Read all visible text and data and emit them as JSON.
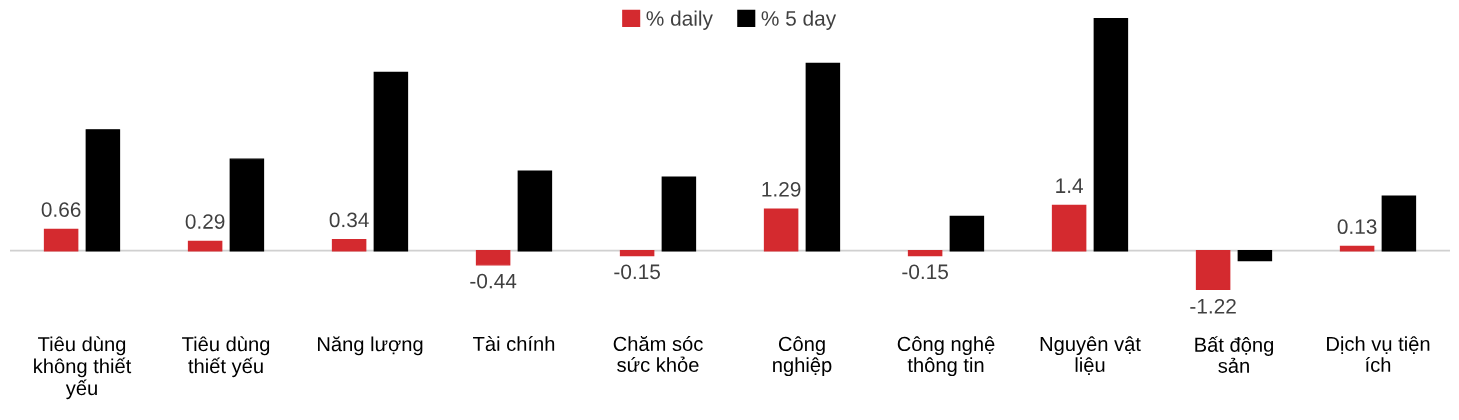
{
  "chart_data": {
    "type": "bar",
    "categories": [
      "Tiêu dùng không thiết yếu",
      "Tiêu dùng thiết yếu",
      "Năng lượng",
      "Tài chính",
      "Chăm sóc sức khỏe",
      "Công nghiệp",
      "Công nghệ thông tin",
      "Nguyên vật liệu",
      "Bất động sản",
      "Dịch vụ tiện ích"
    ],
    "series": [
      {
        "name": "% daily",
        "color": "#d42a2f",
        "values": [
          0.66,
          0.29,
          0.34,
          -0.44,
          -0.15,
          1.29,
          -0.15,
          1.4,
          -1.22,
          0.13
        ],
        "data_labels": true
      },
      {
        "name": "% 5 day",
        "color": "#000000",
        "values": [
          3.75,
          2.84,
          5.53,
          2.47,
          2.28,
          5.81,
          1.06,
          7.22,
          -0.31,
          1.69
        ]
      }
    ],
    "legend": "top"
  }
}
